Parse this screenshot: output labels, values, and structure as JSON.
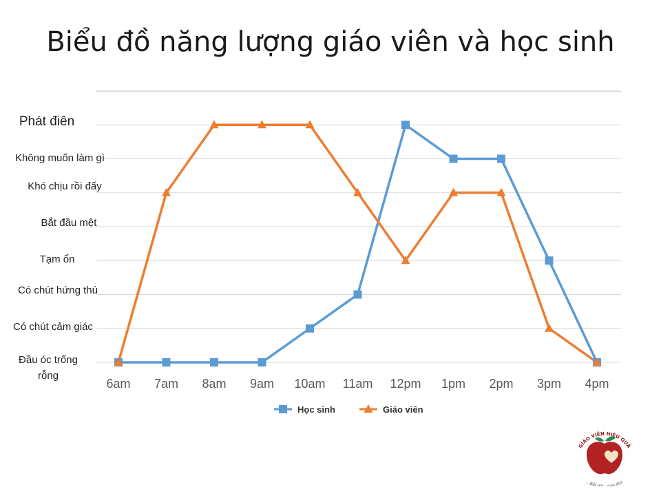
{
  "chart_data": {
    "type": "line",
    "title": "Biểu đồ năng lượng giáo viên và học sinh",
    "categories": [
      "6am",
      "7am",
      "8am",
      "9am",
      "10am",
      "11am",
      "12pm",
      "1pm",
      "2pm",
      "3pm",
      "4pm"
    ],
    "y_levels": [
      "Đầu óc trống rỗng",
      "Có chút cảm giác",
      "Có chút hứng thú",
      "Tạm ổn",
      "Bắt đầu mệt",
      "Khó chịu rồi đấy",
      "Không muốn làm gì",
      "Phát điên"
    ],
    "ylim": [
      0,
      8
    ],
    "grid": true,
    "legend_position": "bottom",
    "series": [
      {
        "name": "Học sinh",
        "color": "#5b9bd5",
        "marker": "square",
        "values": [
          0,
          0,
          0,
          0,
          1,
          2,
          7,
          6,
          6,
          3,
          0
        ]
      },
      {
        "name": "Giáo viên",
        "color": "#ed7d31",
        "marker": "triangle",
        "values": [
          0,
          5,
          7,
          7,
          7,
          5,
          3,
          5,
          5,
          1,
          0
        ]
      }
    ]
  },
  "logo": {
    "top_text": "GIÁO VIÊN HIỆU QUẢ",
    "bottom_text": "...Bắt đầu giáo dục",
    "apple_color": "#b22222",
    "leaf_color": "#2e8b57",
    "heart_color": "#f3e3c3"
  }
}
